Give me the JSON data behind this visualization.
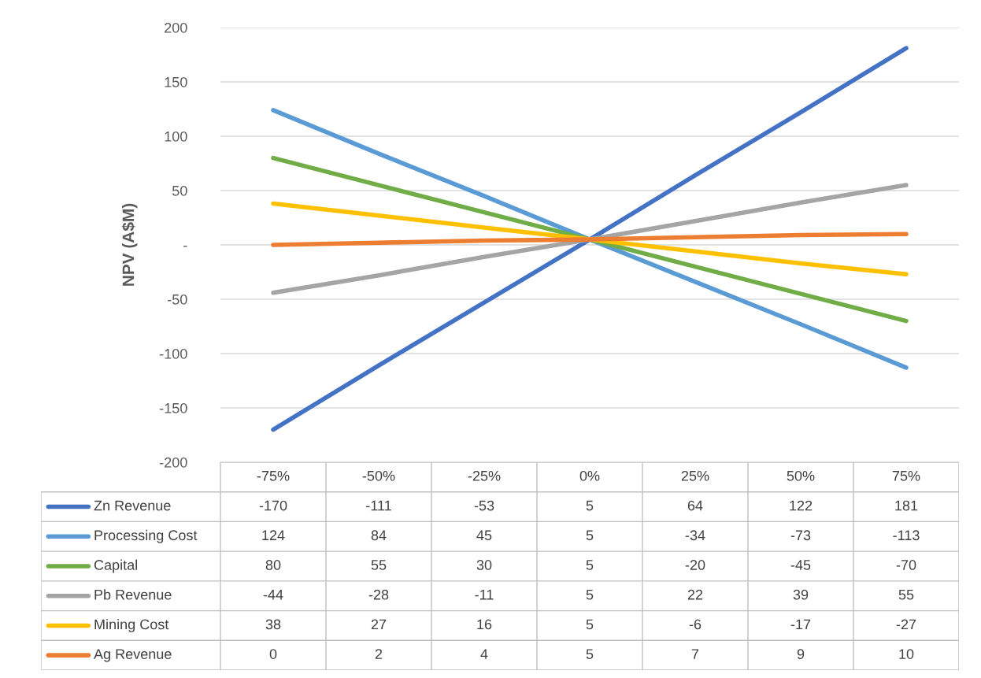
{
  "chart_data": {
    "type": "line",
    "ylabel": "NPV (A$M)",
    "categories": [
      "-75%",
      "-50%",
      "-25%",
      "0%",
      "25%",
      "50%",
      "75%"
    ],
    "series": [
      {
        "name": "Zn Revenue",
        "color": "#4472c4",
        "values": [
          -170,
          -111,
          -53,
          5,
          64,
          122,
          181
        ]
      },
      {
        "name": "Processing Cost",
        "color": "#5b9bd5",
        "values": [
          124,
          84,
          45,
          5,
          -34,
          -73,
          -113
        ]
      },
      {
        "name": "Capital",
        "color": "#70ad47",
        "values": [
          80,
          55,
          30,
          5,
          -20,
          -45,
          -70
        ]
      },
      {
        "name": "Pb Revenue",
        "color": "#a5a5a5",
        "values": [
          -44,
          -28,
          -11,
          5,
          22,
          39,
          55
        ]
      },
      {
        "name": "Mining Cost",
        "color": "#ffc000",
        "values": [
          38,
          27,
          16,
          5,
          -6,
          -17,
          -27
        ]
      },
      {
        "name": "Ag Revenue",
        "color": "#ed7d31",
        "values": [
          0,
          2,
          4,
          5,
          7,
          9,
          10
        ]
      }
    ],
    "ylim": [
      -200,
      200
    ],
    "yticks": [
      -200,
      -150,
      -100,
      -50,
      {
        "value": 0,
        "label": "-"
      },
      50,
      100,
      150,
      200
    ],
    "grid": "y",
    "legend": "bottom",
    "data_labels": true,
    "marker": "none",
    "line_style": "solid"
  }
}
